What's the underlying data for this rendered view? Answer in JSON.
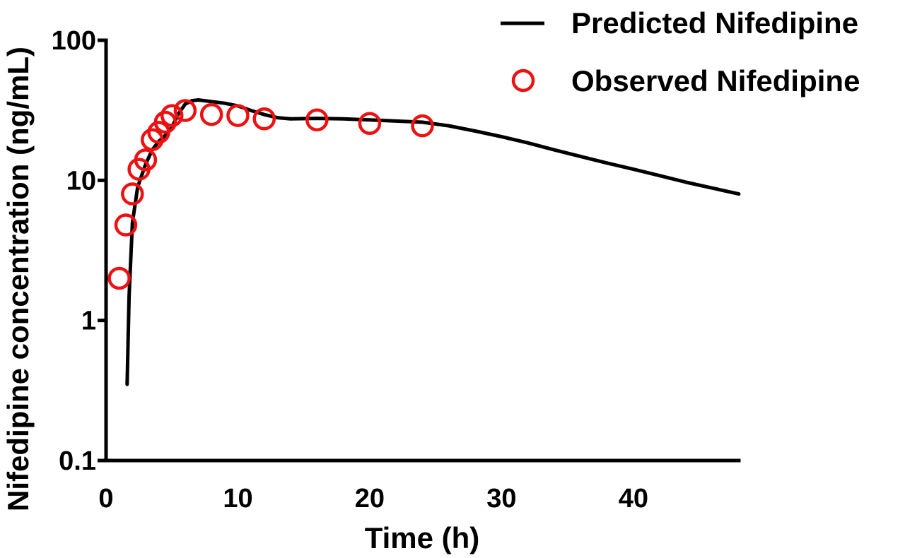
{
  "chart_data": {
    "type": "scatter",
    "xlabel": "Time (h)",
    "ylabel": "Nifedipine concentration (ng/mL)",
    "xlim": [
      0,
      48
    ],
    "ylim": [
      0.1,
      100
    ],
    "yscale": "log",
    "x_ticks": [
      0,
      10,
      20,
      30,
      40
    ],
    "x_tick_labels": [
      "0",
      "10",
      "20",
      "30",
      "40"
    ],
    "y_ticks": [
      0.1,
      1,
      10,
      100
    ],
    "y_tick_labels": [
      "0.1",
      "1",
      "10",
      "100"
    ],
    "grid": false,
    "legend_position": "top-right",
    "series": [
      {
        "name": "Predicted Nifedipine",
        "kind": "line",
        "color": "#000000",
        "points": [
          [
            1.6,
            0.35
          ],
          [
            1.75,
            1.5
          ],
          [
            2.0,
            5.0
          ],
          [
            2.4,
            9.0
          ],
          [
            3.0,
            13.0
          ],
          [
            3.5,
            16.5
          ],
          [
            4.0,
            19.0
          ],
          [
            4.5,
            21.0
          ],
          [
            5.0,
            24.0
          ],
          [
            5.5,
            30.0
          ],
          [
            6.0,
            35.0
          ],
          [
            6.5,
            37.0
          ],
          [
            7.0,
            37.5
          ],
          [
            8.0,
            36.5
          ],
          [
            9.0,
            35.5
          ],
          [
            10.0,
            34.0
          ],
          [
            11.0,
            31.5
          ],
          [
            12.0,
            29.5
          ],
          [
            13.0,
            28.0
          ],
          [
            14.0,
            27.5
          ],
          [
            16.0,
            27.7
          ],
          [
            18.0,
            27.5
          ],
          [
            20.0,
            27.0
          ],
          [
            22.0,
            26.5
          ],
          [
            24.0,
            26.0
          ],
          [
            26.0,
            24.5
          ],
          [
            28.0,
            22.5
          ],
          [
            30.0,
            20.5
          ],
          [
            32.0,
            18.5
          ],
          [
            34.0,
            16.5
          ],
          [
            36.0,
            14.8
          ],
          [
            38.0,
            13.3
          ],
          [
            40.0,
            12.0
          ],
          [
            42.0,
            10.8
          ],
          [
            44.0,
            9.7
          ],
          [
            46.0,
            8.8
          ],
          [
            48.0,
            8.0
          ]
        ]
      },
      {
        "name": "Observed Nifedipine",
        "kind": "scatter",
        "color": "#ee1111",
        "points": [
          [
            1.0,
            2.0
          ],
          [
            1.5,
            4.8
          ],
          [
            2.0,
            8.0
          ],
          [
            2.5,
            12.0
          ],
          [
            3.0,
            14.0
          ],
          [
            3.5,
            19.5
          ],
          [
            4.0,
            22.0
          ],
          [
            4.5,
            26.0
          ],
          [
            5.0,
            29.0
          ],
          [
            6.0,
            31.5
          ],
          [
            8.0,
            29.5
          ],
          [
            10.0,
            29.0
          ],
          [
            12.0,
            27.5
          ],
          [
            16.0,
            27.0
          ],
          [
            20.0,
            25.5
          ],
          [
            24.0,
            24.5
          ]
        ]
      }
    ]
  }
}
